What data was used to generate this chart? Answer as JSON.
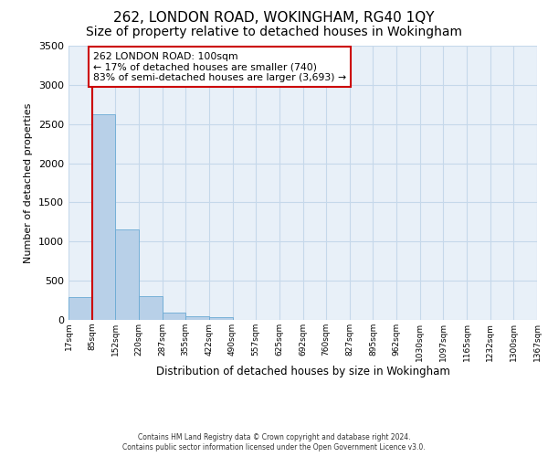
{
  "title": "262, LONDON ROAD, WOKINGHAM, RG40 1QY",
  "subtitle": "Size of property relative to detached houses in Wokingham",
  "xlabel": "Distribution of detached houses by size in Wokingham",
  "ylabel": "Number of detached properties",
  "bin_labels": [
    "17sqm",
    "85sqm",
    "152sqm",
    "220sqm",
    "287sqm",
    "355sqm",
    "422sqm",
    "490sqm",
    "557sqm",
    "625sqm",
    "692sqm",
    "760sqm",
    "827sqm",
    "895sqm",
    "962sqm",
    "1030sqm",
    "1097sqm",
    "1165sqm",
    "1232sqm",
    "1300sqm",
    "1367sqm"
  ],
  "bar_values": [
    295,
    2630,
    1150,
    300,
    90,
    50,
    30,
    0,
    0,
    0,
    0,
    0,
    0,
    0,
    0,
    0,
    0,
    0,
    0,
    0
  ],
  "bar_color": "#b8d0e8",
  "bar_edgecolor": "#6aaad4",
  "grid_color": "#c5d8ea",
  "background_color": "#e8f0f8",
  "vline_x": 1,
  "vline_color": "#cc0000",
  "annotation_text": "262 LONDON ROAD: 100sqm\n← 17% of detached houses are smaller (740)\n83% of semi-detached houses are larger (3,693) →",
  "annotation_box_edgecolor": "#cc0000",
  "ylim": [
    0,
    3500
  ],
  "yticks": [
    0,
    500,
    1000,
    1500,
    2000,
    2500,
    3000,
    3500
  ],
  "footer_line1": "Contains HM Land Registry data © Crown copyright and database right 2024.",
  "footer_line2": "Contains public sector information licensed under the Open Government Licence v3.0.",
  "title_fontsize": 11,
  "subtitle_fontsize": 10,
  "n_bars": 20
}
